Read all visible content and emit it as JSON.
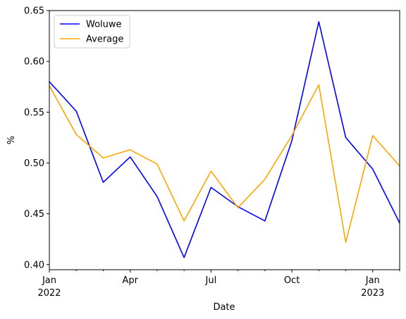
{
  "chart_data": {
    "type": "line",
    "x": [
      "2022-01",
      "2022-02",
      "2022-03",
      "2022-04",
      "2022-05",
      "2022-06",
      "2022-07",
      "2022-08",
      "2022-09",
      "2022-10",
      "2022-11",
      "2022-12",
      "2023-01",
      "2023-02"
    ],
    "series": [
      {
        "name": "Woluwe",
        "color": "#0000ff",
        "values": [
          0.58,
          0.551,
          0.481,
          0.506,
          0.467,
          0.407,
          0.476,
          0.457,
          0.443,
          0.522,
          0.639,
          0.525,
          0.494,
          0.441
        ]
      },
      {
        "name": "Average",
        "color": "#ffa500",
        "values": [
          0.576,
          0.528,
          0.505,
          0.513,
          0.499,
          0.443,
          0.492,
          0.456,
          0.484,
          0.527,
          0.577,
          0.422,
          0.527,
          0.497
        ]
      }
    ],
    "xlabel": "Date",
    "ylabel": "%",
    "ylim": [
      0.395,
      0.65
    ],
    "y_ticks": [
      "0.40",
      "0.45",
      "0.50",
      "0.55",
      "0.60",
      "0.65"
    ],
    "x_ticks": [
      {
        "label": "Jan",
        "sub": "2022",
        "at": "2022-01"
      },
      {
        "label": "Apr",
        "sub": "",
        "at": "2022-04"
      },
      {
        "label": "Jul",
        "sub": "",
        "at": "2022-07"
      },
      {
        "label": "Oct",
        "sub": "",
        "at": "2022-10"
      },
      {
        "label": "Jan",
        "sub": "2023",
        "at": "2023-01"
      }
    ],
    "legend_placement": "upper-left",
    "grid": false
  }
}
